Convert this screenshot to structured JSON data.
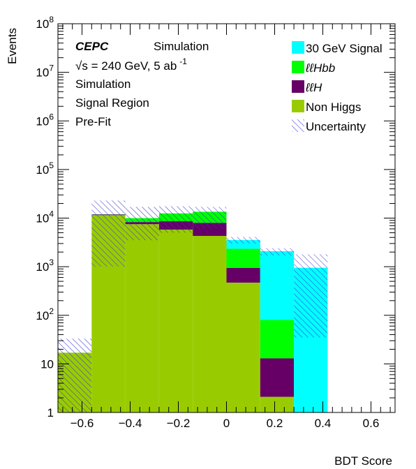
{
  "chart_data": {
    "type": "bar",
    "stacked": true,
    "log_y": true,
    "xlabel": "BDT Score",
    "ylabel": "Events",
    "xlim": [
      -0.7,
      0.7
    ],
    "ylim": [
      1,
      100000000
    ],
    "x_ticks": [
      -0.6,
      -0.4,
      -0.2,
      0,
      0.2,
      0.4,
      0.6
    ],
    "x_tick_labels": [
      "−0.6",
      "−0.4",
      "−0.2",
      "0",
      "0.2",
      "0.4",
      "0.6"
    ],
    "y_tick_labels": [
      {
        "value": 1,
        "base": "1",
        "exp": ""
      },
      {
        "value": 10,
        "base": "10",
        "exp": ""
      },
      {
        "value": 100,
        "base": "10",
        "exp": "2"
      },
      {
        "value": 1000,
        "base": "10",
        "exp": "3"
      },
      {
        "value": 10000,
        "base": "10",
        "exp": "4"
      },
      {
        "value": 100000,
        "base": "10",
        "exp": "5"
      },
      {
        "value": 1000000,
        "base": "10",
        "exp": "6"
      },
      {
        "value": 10000000,
        "base": "10",
        "exp": "7"
      },
      {
        "value": 100000000,
        "base": "10",
        "exp": "8"
      }
    ],
    "bin_edges": [
      -0.7,
      -0.56,
      -0.42,
      -0.28,
      -0.14,
      0.0,
      0.14,
      0.28,
      0.42,
      0.56,
      0.7
    ],
    "series": [
      {
        "name": "Non Higgs",
        "color": "#99cc00",
        "values": [
          17,
          11500,
          7500,
          5800,
          4300,
          470,
          2.1,
          0,
          0,
          0
        ]
      },
      {
        "name": "ℓℓH",
        "color": "#660066",
        "values": [
          0,
          400,
          800,
          2800,
          3700,
          470,
          10.9,
          0,
          0,
          0
        ]
      },
      {
        "name": "ℓℓHbb",
        "color": "#00ff00",
        "values": [
          0,
          100,
          1700,
          3900,
          5500,
          1400,
          67,
          0,
          0,
          0
        ]
      },
      {
        "name": "30 GeV Signal",
        "color": "#00ffff",
        "values": [
          0,
          0,
          0,
          0,
          0,
          1200,
          2000,
          950,
          0,
          0
        ]
      }
    ],
    "uncertainty": {
      "name": "Uncertainty",
      "color": "#3333cc",
      "low": [
        1,
        1000,
        3500,
        5000,
        6000,
        3000,
        1700,
        35,
        1,
        1
      ],
      "high": [
        33,
        23000,
        17000,
        17500,
        17000,
        4100,
        2400,
        1800,
        1,
        1
      ]
    },
    "annotations": {
      "experiment": "CEPC",
      "label": "Simulation",
      "energy_sqrt": "√",
      "energy_rest": "s = 240 GeV, 5 ab",
      "energy_exp": "-1",
      "line2": "Simulation",
      "line3": "Signal Region",
      "line4": "Pre-Fit"
    },
    "legend": {
      "placement": "top-right",
      "entries": [
        {
          "label": "30 GeV Signal",
          "color": "#00ffff",
          "style": "fill"
        },
        {
          "label": "ℓℓHbb",
          "color": "#00ff00",
          "style": "fill",
          "italic": true
        },
        {
          "label": "ℓℓH",
          "color": "#660066",
          "style": "fill",
          "italic": true
        },
        {
          "label": "Non Higgs",
          "color": "#99cc00",
          "style": "fill"
        },
        {
          "label": "Uncertainty",
          "color": "#3333cc",
          "style": "hatch"
        }
      ]
    }
  }
}
